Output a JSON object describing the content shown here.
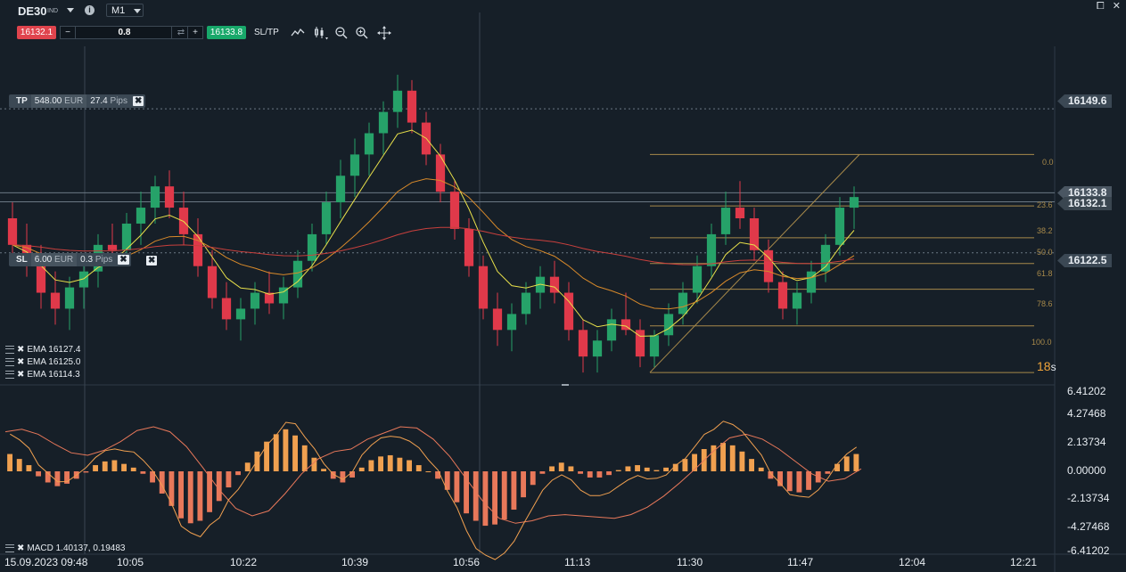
{
  "header": {
    "symbol": "DE30",
    "symbol_sub": "IND",
    "info_icon": "info-icon",
    "timeframe": "M1",
    "sell_price": "16132.1",
    "quantity": "0.8",
    "minus": "−",
    "plus": "+",
    "swap_icon": "swap-icon",
    "buy_price": "16133.8",
    "sltp_label": "SL/TP",
    "tools": [
      "line-chart-icon",
      "candle-chart-icon",
      "zoom-out-icon",
      "zoom-in-icon",
      "move-icon"
    ],
    "window_icons": [
      "restore-icon",
      "close-icon"
    ],
    "window_restore": "⧠",
    "window_close": "✕"
  },
  "orders": {
    "tp": {
      "label": "TP",
      "amount": "548.00",
      "currency": "EUR",
      "pips": "27.4",
      "pips_unit": "Pips",
      "price": "16149.6"
    },
    "sl": {
      "label": "SL",
      "amount": "6.00",
      "currency": "EUR",
      "pips": "0.3",
      "pips_unit": "Pips",
      "price": "16122.5"
    }
  },
  "price_tags": {
    "ask": "16133.8",
    "bid": "16132.1"
  },
  "indicators": {
    "ema": [
      "EMA 16127.4",
      "EMA 16125.0",
      "EMA 16114.3"
    ],
    "macd": "MACD 1.40137, 0.19483"
  },
  "countdown": {
    "value": "18",
    "unit": "s"
  },
  "fib_levels": [
    "0.0",
    "23.6",
    "38.2",
    "50.0",
    "61.8",
    "78.6",
    "100.0"
  ],
  "colors": {
    "bull": "#26a269",
    "bear": "#e0394a",
    "ema_fast": "#e8e04a",
    "ema_mid": "#d98a2a",
    "ema_slow": "#c9403d",
    "macd_pos": "#f0a050",
    "macd_neg": "#e8785a",
    "fib": "#a7894a"
  },
  "chart_data": [
    {
      "type": "candlestick",
      "title": "",
      "x_tick_labels": [
        "15.09.2023 09:48",
        "10:05",
        "10:22",
        "10:39",
        "10:56",
        "11:13",
        "11:30",
        "11:47",
        "12:04",
        "12:21"
      ],
      "y_labels": [
        "16149.6",
        "16133.8",
        "16132.1",
        "16122.5"
      ],
      "ylim": [
        16098,
        16160
      ],
      "candles_ohlc": [
        [
          16129,
          16132,
          16121,
          16124
        ],
        [
          16124,
          16128,
          16118,
          16120
        ],
        [
          16120,
          16124,
          16112,
          16115
        ],
        [
          16115,
          16119,
          16109,
          16112
        ],
        [
          16112,
          16118,
          16108,
          16116
        ],
        [
          16116,
          16121,
          16112,
          16119
        ],
        [
          16119,
          16126,
          16116,
          16124
        ],
        [
          16124,
          16128,
          16120,
          16123
        ],
        [
          16123,
          16130,
          16121,
          16128
        ],
        [
          16128,
          16134,
          16124,
          16131
        ],
        [
          16131,
          16137,
          16128,
          16135
        ],
        [
          16135,
          16138,
          16129,
          16131
        ],
        [
          16131,
          16134,
          16124,
          16126
        ],
        [
          16126,
          16129,
          16118,
          16120
        ],
        [
          16120,
          16123,
          16112,
          16114
        ],
        [
          16114,
          16117,
          16108,
          16110
        ],
        [
          16110,
          16114,
          16106,
          16112
        ],
        [
          16112,
          16117,
          16109,
          16115
        ],
        [
          16115,
          16119,
          16111,
          16113
        ],
        [
          16113,
          16118,
          16110,
          16116
        ],
        [
          16116,
          16123,
          16114,
          16121
        ],
        [
          16121,
          16128,
          16119,
          16126
        ],
        [
          16126,
          16134,
          16124,
          16132
        ],
        [
          16132,
          16140,
          16129,
          16137
        ],
        [
          16137,
          16144,
          16133,
          16141
        ],
        [
          16141,
          16147,
          16137,
          16145
        ],
        [
          16145,
          16151,
          16141,
          16149
        ],
        [
          16149,
          16156,
          16146,
          16153
        ],
        [
          16153,
          16155,
          16145,
          16147
        ],
        [
          16147,
          16149,
          16139,
          16141
        ],
        [
          16141,
          16143,
          16132,
          16134
        ],
        [
          16134,
          16136,
          16125,
          16127
        ],
        [
          16127,
          16129,
          16118,
          16120
        ],
        [
          16120,
          16122,
          16110,
          16112
        ],
        [
          16112,
          16115,
          16105,
          16108
        ],
        [
          16108,
          16113,
          16104,
          16111
        ],
        [
          16111,
          16117,
          16109,
          16115
        ],
        [
          16115,
          16120,
          16112,
          16118
        ],
        [
          16118,
          16121,
          16113,
          16115
        ],
        [
          16115,
          16117,
          16106,
          16108
        ],
        [
          16108,
          16110,
          16100,
          16103
        ],
        [
          16103,
          16108,
          16100,
          16106
        ],
        [
          16106,
          16112,
          16104,
          16110
        ],
        [
          16110,
          16115,
          16107,
          16108
        ],
        [
          16108,
          16110,
          16101,
          16103
        ],
        [
          16103,
          16108,
          16101,
          16107
        ],
        [
          16107,
          16113,
          16105,
          16111
        ],
        [
          16111,
          16117,
          16109,
          16115
        ],
        [
          16115,
          16122,
          16113,
          16120
        ],
        [
          16120,
          16128,
          16118,
          16126
        ],
        [
          16126,
          16134,
          16124,
          16131
        ],
        [
          16131,
          16136,
          16127,
          16129
        ],
        [
          16129,
          16131,
          16121,
          16123
        ],
        [
          16123,
          16125,
          16115,
          16117
        ],
        [
          16117,
          16119,
          16110,
          16112
        ],
        [
          16112,
          16117,
          16109,
          16115
        ],
        [
          16115,
          16121,
          16113,
          16119
        ],
        [
          16119,
          16126,
          16117,
          16124
        ],
        [
          16124,
          16133,
          16122,
          16131
        ],
        [
          16131,
          16135,
          16127,
          16133
        ]
      ],
      "ema_last": [
        16127.4,
        16125.0,
        16114.3
      ]
    },
    {
      "type": "bar",
      "title": "",
      "label": "MACD 1.40137, 0.19483",
      "y_tick_labels": [
        "6.41202",
        "4.27468",
        "2.13734",
        "0.00000",
        "-2.13734",
        "-4.27468",
        "-6.41202"
      ],
      "ylim": [
        -6.41202,
        6.41202
      ],
      "histogram": [
        1.4,
        1.0,
        0.5,
        -0.4,
        -0.9,
        -1.2,
        -1.0,
        -0.6,
        -0.1,
        0.5,
        0.8,
        0.9,
        0.6,
        0.3,
        -0.2,
        -0.9,
        -1.8,
        -2.8,
        -3.8,
        -4.2,
        -4.0,
        -3.3,
        -2.4,
        -1.3,
        -0.3,
        0.7,
        1.6,
        2.4,
        3.0,
        3.4,
        2.9,
        2.1,
        1.1,
        0.2,
        -0.6,
        -0.9,
        -0.5,
        0.3,
        0.9,
        1.2,
        1.3,
        1.1,
        0.9,
        0.5,
        0.0,
        -0.6,
        -1.5,
        -2.5,
        -3.4,
        -4.0,
        -4.4,
        -4.3,
        -3.9,
        -3.1,
        -2.1,
        -1.1,
        -0.2,
        0.4,
        0.7,
        0.4,
        -0.2,
        -0.5,
        -0.5,
        -0.3,
        0.1,
        0.4,
        0.5,
        0.3,
        0.1,
        0.3,
        0.6,
        1.0,
        1.4,
        1.8,
        2.1,
        2.3,
        2.1,
        1.6,
        1.0,
        0.3,
        -0.6,
        -1.2,
        -1.6,
        -1.7,
        -1.5,
        -0.9,
        -0.2,
        0.6,
        1.2,
        1.4
      ],
      "signal": [
        3.2,
        3.4,
        3.0,
        2.2,
        1.5,
        1.3,
        1.7,
        2.4,
        3.3,
        3.6,
        3.2,
        2.0,
        0.3,
        -1.5,
        -3.0,
        -3.6,
        -3.2,
        -1.8,
        -0.2,
        1.0,
        1.6,
        1.8,
        2.6,
        3.1,
        3.6,
        3.5,
        2.6,
        1.2,
        -0.6,
        -2.4,
        -3.8,
        -4.2,
        -4.0,
        -3.6,
        -3.5,
        -3.6,
        -3.7,
        -3.8,
        -3.5,
        -2.9,
        -2.0,
        -0.9,
        0.3,
        1.6,
        2.7,
        3.0,
        2.6,
        1.8,
        0.8,
        -0.2,
        -0.8,
        -0.6,
        0.2
      ]
    }
  ]
}
